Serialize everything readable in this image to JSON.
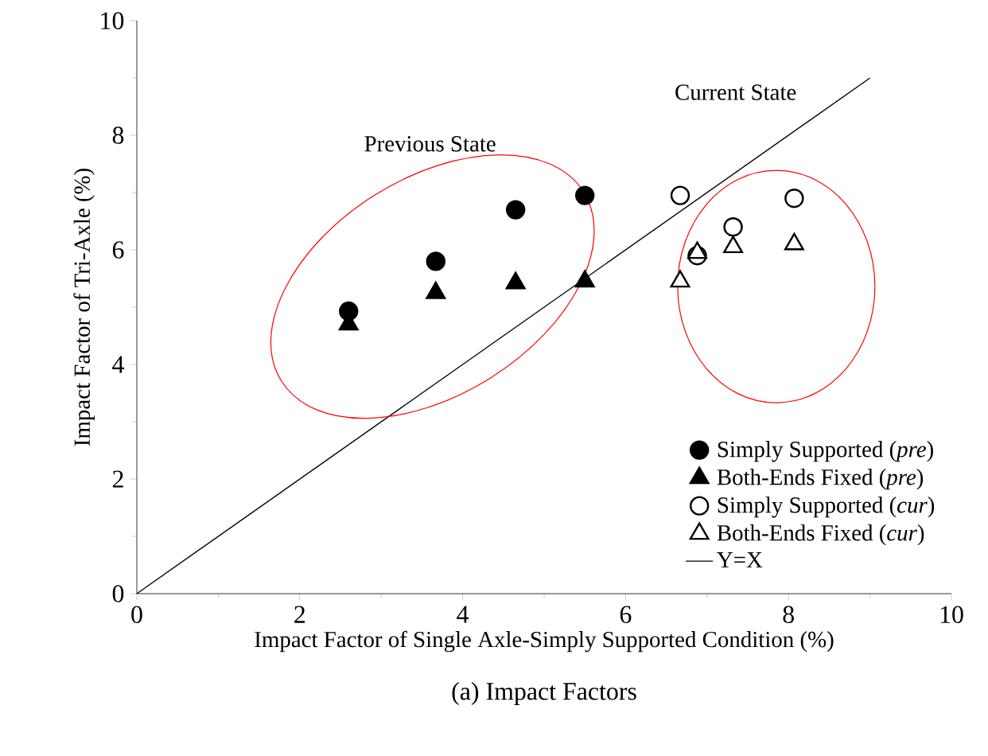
{
  "chart_data": {
    "type": "scatter",
    "title": "(a) Impact Factors",
    "xlabel": "Impact Factor of Single Axle-Simply Supported Condition (%)",
    "ylabel": "Impact Factor of Tri-Axle (%)",
    "xlim": [
      0,
      10
    ],
    "ylim": [
      0,
      10
    ],
    "xticks": [
      0,
      2,
      4,
      6,
      8,
      10
    ],
    "yticks": [
      0,
      2,
      4,
      6,
      8,
      10
    ],
    "grid": false,
    "legend": "bottom right",
    "annotations": [
      "Previous State",
      "Current State"
    ],
    "series": [
      {
        "name": "Simply Supported (*pre*)",
        "marker": "circle",
        "color": "#000000",
        "x": [
          2.6,
          3.67,
          4.65,
          5.5
        ],
        "values": [
          4.93,
          5.8,
          6.7,
          6.95
        ]
      },
      {
        "name": "Both-Ends Fixed (*pre*)",
        "marker": "triangle",
        "color": "#000000",
        "x": [
          2.6,
          3.67,
          4.65,
          5.5
        ],
        "values": [
          4.7,
          5.25,
          5.42,
          5.45
        ]
      },
      {
        "name": "Simply Supported (*cur*)",
        "marker": "circle",
        "color": "#000000",
        "x": [
          6.67,
          6.88,
          7.32,
          8.07
        ],
        "values": [
          6.95,
          5.9,
          6.4,
          6.9
        ]
      },
      {
        "name": "Both-Ends Fixed (*cur*)",
        "marker": "triangle",
        "color": "#000000",
        "x": [
          6.67,
          6.88,
          7.32,
          8.07
        ],
        "values": [
          5.45,
          5.95,
          6.05,
          6.1
        ]
      },
      {
        "name": "Y=X",
        "type": "line",
        "marker": "none",
        "color": "#000000",
        "x": [
          0,
          9
        ],
        "values": [
          0,
          9
        ]
      }
    ]
  }
}
